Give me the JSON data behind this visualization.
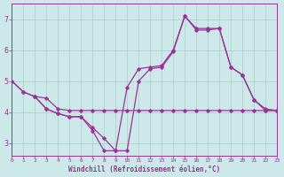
{
  "xlabel": "Windchill (Refroidissement éolien,°C)",
  "background_color": "#cde8e8",
  "grid_color": "#aacccc",
  "line_color": "#993399",
  "xlim": [
    0,
    23
  ],
  "ylim": [
    2.6,
    7.5
  ],
  "yticks": [
    3,
    4,
    5,
    6,
    7
  ],
  "xticks": [
    0,
    1,
    2,
    3,
    4,
    5,
    6,
    7,
    8,
    9,
    10,
    11,
    12,
    13,
    14,
    15,
    16,
    17,
    18,
    19,
    20,
    21,
    22,
    23
  ],
  "line1_x": [
    0,
    1,
    2,
    3,
    4,
    5,
    6,
    7,
    8,
    9,
    10,
    11,
    12,
    13,
    14,
    15,
    16,
    17,
    18,
    19,
    20,
    21,
    22,
    23
  ],
  "line1_y": [
    5.0,
    4.65,
    4.5,
    4.45,
    4.1,
    4.05,
    4.05,
    4.05,
    4.05,
    4.05,
    4.05,
    4.05,
    4.05,
    4.05,
    4.05,
    4.05,
    4.05,
    4.05,
    4.05,
    4.05,
    4.05,
    4.05,
    4.05,
    4.05
  ],
  "line2_x": [
    0,
    1,
    2,
    3,
    4,
    5,
    6,
    7,
    8,
    9,
    10,
    11,
    12,
    13,
    14,
    15,
    16,
    17,
    18,
    19,
    20,
    21,
    22,
    23
  ],
  "line2_y": [
    5.0,
    4.65,
    4.5,
    4.1,
    3.95,
    3.85,
    3.85,
    3.4,
    2.75,
    2.75,
    4.8,
    5.4,
    5.45,
    5.5,
    6.0,
    7.1,
    6.7,
    6.7,
    6.7,
    5.45,
    5.2,
    4.4,
    4.1,
    4.05
  ],
  "line3_x": [
    2,
    3,
    4,
    5,
    6,
    7,
    8,
    9,
    10,
    11,
    12,
    13,
    14,
    15,
    16,
    17,
    18,
    19,
    20,
    21,
    22,
    23
  ],
  "line3_y": [
    4.5,
    4.1,
    3.95,
    3.85,
    3.85,
    3.5,
    3.15,
    2.75,
    2.75,
    5.0,
    5.4,
    5.45,
    5.95,
    7.1,
    6.65,
    6.65,
    6.7,
    5.45,
    5.2,
    4.4,
    4.05,
    4.05
  ]
}
